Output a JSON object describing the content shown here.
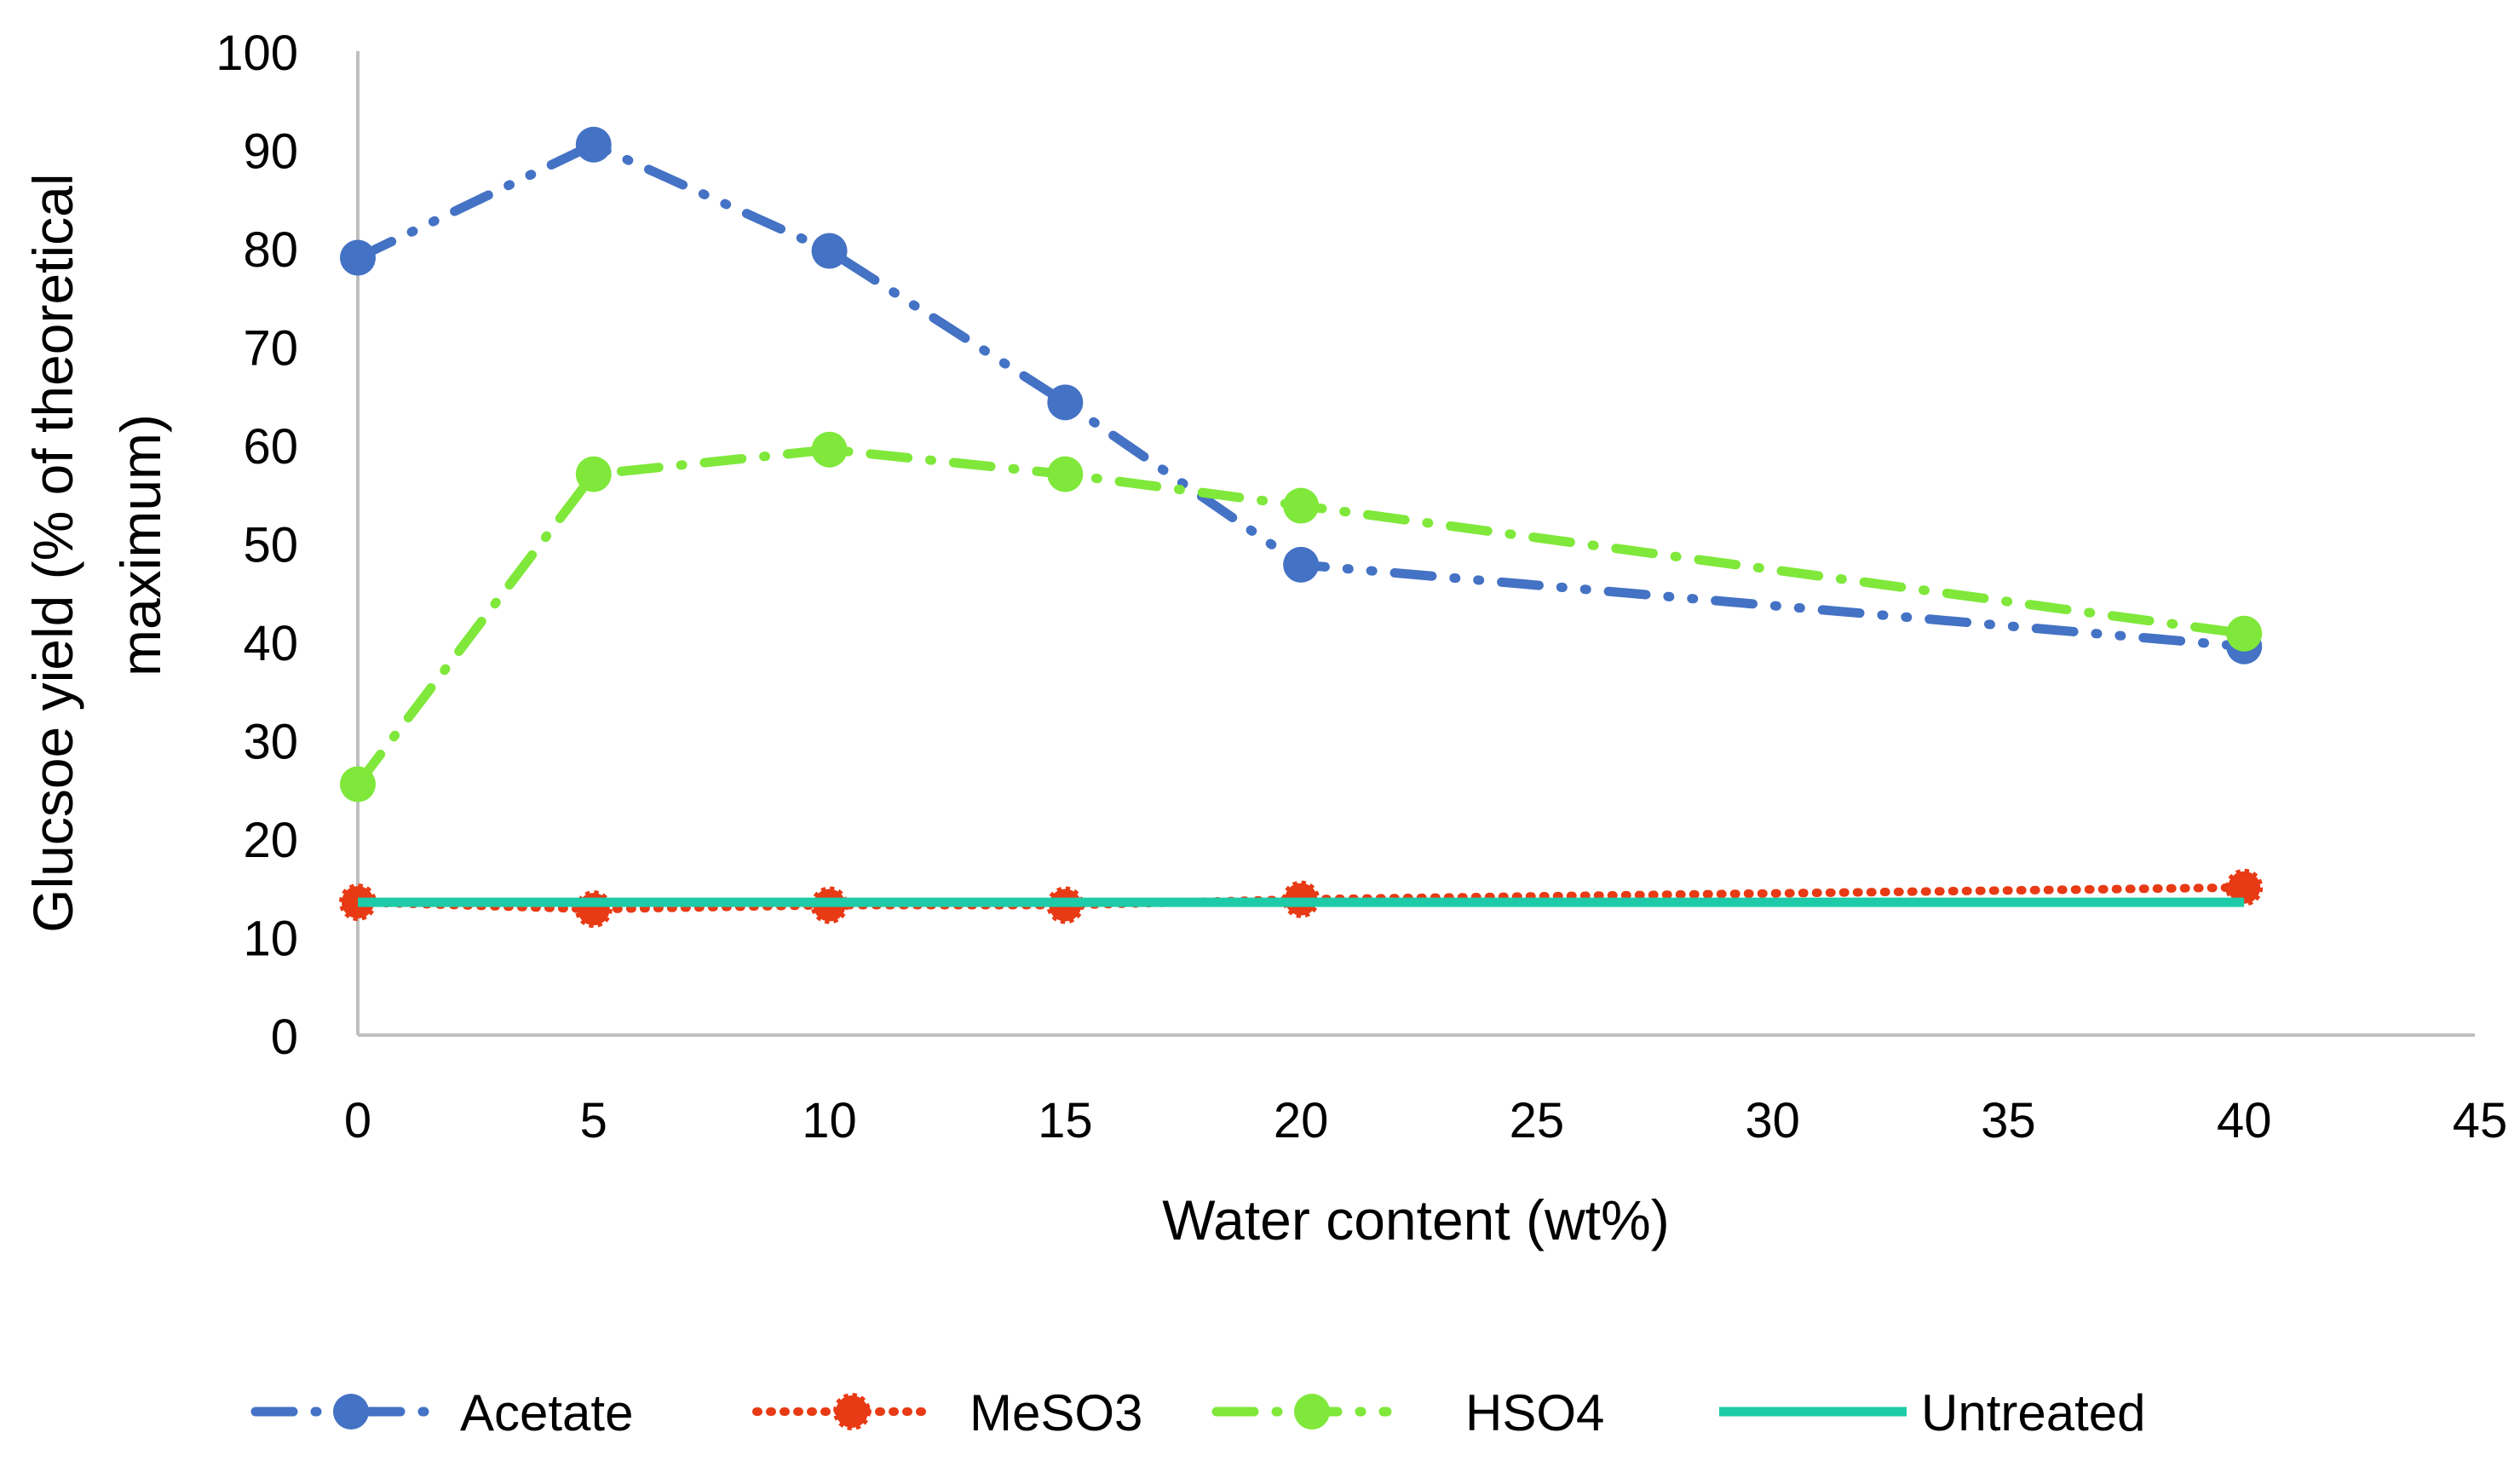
{
  "chart_data": {
    "type": "line",
    "title": "",
    "xlabel": "Water content (wt%)",
    "ylabel_lines": [
      "Glucsoe yield (% of theoretical",
      "maximum)"
    ],
    "xlim": [
      0,
      45
    ],
    "ylim": [
      0,
      100
    ],
    "x_ticks": [
      0,
      5,
      10,
      15,
      20,
      25,
      30,
      35,
      40,
      45
    ],
    "y_ticks": [
      0,
      10,
      20,
      30,
      40,
      50,
      60,
      70,
      80,
      90,
      100
    ],
    "grid": false,
    "legend_position": "bottom",
    "series": [
      {
        "name": "Acetate",
        "color": "#4472C4",
        "style": "dash-dot-dot",
        "marker": "circle",
        "x": [
          0,
          5,
          10,
          15,
          20,
          40
        ],
        "y": [
          79,
          90.5,
          79.7,
          64.3,
          47.8,
          39.5
        ]
      },
      {
        "name": "MeSO3",
        "color": "#E83A14",
        "style": "dotted",
        "marker": "circle",
        "x": [
          0,
          5,
          10,
          15,
          20,
          40
        ],
        "y": [
          13.5,
          12.8,
          13.2,
          13.2,
          13.8,
          15
        ]
      },
      {
        "name": "HSO4",
        "color": "#7FE83A",
        "style": "dash-dot",
        "marker": "circle",
        "x": [
          0,
          5,
          10,
          15,
          20,
          40
        ],
        "y": [
          25.5,
          57,
          59.5,
          57,
          53.8,
          40.8
        ]
      },
      {
        "name": "Untreated",
        "color": "#1ECBA8",
        "style": "solid",
        "marker": "none",
        "x": [
          0,
          40
        ],
        "y": [
          13.5,
          13.5
        ]
      }
    ]
  }
}
